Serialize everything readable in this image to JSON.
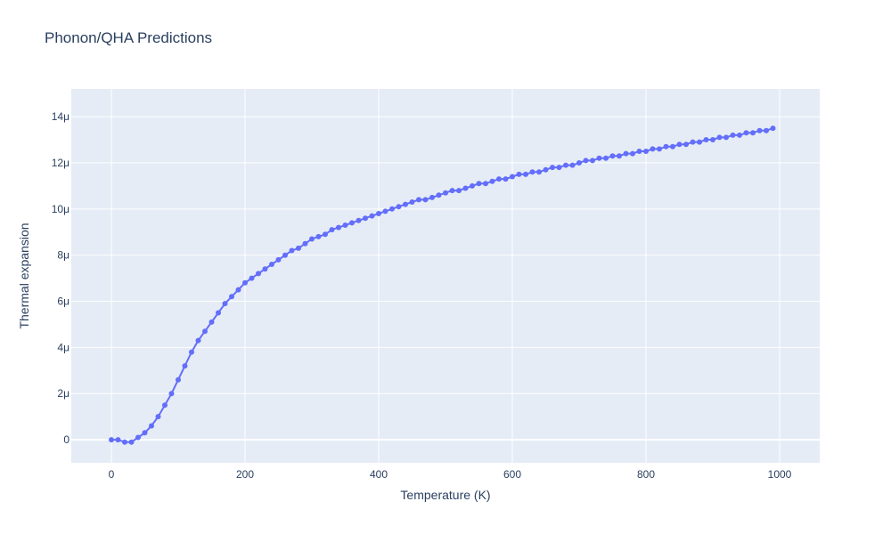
{
  "chart_data": {
    "type": "line",
    "title": "Phonon/QHA Predictions",
    "xlabel": "Temperature (K)",
    "ylabel": "Thermal expansion",
    "xlim": [
      -60,
      1060
    ],
    "ylim": [
      -1e-06,
      1.52e-05
    ],
    "x_ticks": [
      0,
      200,
      400,
      600,
      800,
      1000
    ],
    "x_tick_labels": [
      "0",
      "200",
      "400",
      "600",
      "800",
      "1000"
    ],
    "y_ticks": [
      0,
      2e-06,
      4e-06,
      6e-06,
      8e-06,
      1e-05,
      1.2e-05,
      1.4e-05
    ],
    "y_tick_labels": [
      "0",
      "2μ",
      "4μ",
      "6μ",
      "8μ",
      "10μ",
      "12μ",
      "14μ"
    ],
    "grid": true,
    "colors": {
      "series": "#636efa",
      "plot_bg": "#e5ecf6",
      "grid": "#ffffff",
      "text": "#2a3f5f"
    },
    "series": [
      {
        "x": [
          0,
          10,
          20,
          30,
          40,
          50,
          60,
          70,
          80,
          90,
          100,
          110,
          120,
          130,
          140,
          150,
          160,
          170,
          180,
          190,
          200,
          210,
          220,
          230,
          240,
          250,
          260,
          270,
          280,
          290,
          300,
          310,
          320,
          330,
          340,
          350,
          360,
          370,
          380,
          390,
          400,
          410,
          420,
          430,
          440,
          450,
          460,
          470,
          480,
          490,
          500,
          510,
          520,
          530,
          540,
          550,
          560,
          570,
          580,
          590,
          600,
          610,
          620,
          630,
          640,
          650,
          660,
          670,
          680,
          690,
          700,
          710,
          720,
          730,
          740,
          750,
          760,
          770,
          780,
          790,
          800,
          810,
          820,
          830,
          840,
          850,
          860,
          870,
          880,
          890,
          900,
          910,
          920,
          930,
          940,
          950,
          960,
          970,
          980,
          990
        ],
        "y": [
          0.0,
          -0.0,
          -1e-07,
          -1e-07,
          1e-07,
          3e-07,
          6e-07,
          1e-06,
          1.5e-06,
          2e-06,
          2.6e-06,
          3.2e-06,
          3.8e-06,
          4.3e-06,
          4.7e-06,
          5.1e-06,
          5.5e-06,
          5.9e-06,
          6.2e-06,
          6.5e-06,
          6.8e-06,
          7e-06,
          7.2e-06,
          7.4e-06,
          7.6e-06,
          7.8e-06,
          8e-06,
          8.2e-06,
          8.3e-06,
          8.5e-06,
          8.7e-06,
          8.8e-06,
          8.9e-06,
          9.1e-06,
          9.2e-06,
          9.3e-06,
          9.4e-06,
          9.5e-06,
          9.6e-06,
          9.7e-06,
          9.8e-06,
          9.9e-06,
          1e-05,
          1.01e-05,
          1.02e-05,
          1.03e-05,
          1.04e-05,
          1.04e-05,
          1.05e-05,
          1.06e-05,
          1.07e-05,
          1.08e-05,
          1.08e-05,
          1.09e-05,
          1.1e-05,
          1.11e-05,
          1.11e-05,
          1.12e-05,
          1.13e-05,
          1.13e-05,
          1.14e-05,
          1.15e-05,
          1.15e-05,
          1.16e-05,
          1.16e-05,
          1.17e-05,
          1.18e-05,
          1.18e-05,
          1.19e-05,
          1.19e-05,
          1.2e-05,
          1.21e-05,
          1.21e-05,
          1.22e-05,
          1.22e-05,
          1.23e-05,
          1.23e-05,
          1.24e-05,
          1.24e-05,
          1.25e-05,
          1.25e-05,
          1.26e-05,
          1.26e-05,
          1.27e-05,
          1.27e-05,
          1.28e-05,
          1.28e-05,
          1.29e-05,
          1.29e-05,
          1.3e-05,
          1.3e-05,
          1.31e-05,
          1.31e-05,
          1.32e-05,
          1.32e-05,
          1.33e-05,
          1.33e-05,
          1.34e-05,
          1.34e-05,
          1.35e-05
        ]
      }
    ]
  }
}
